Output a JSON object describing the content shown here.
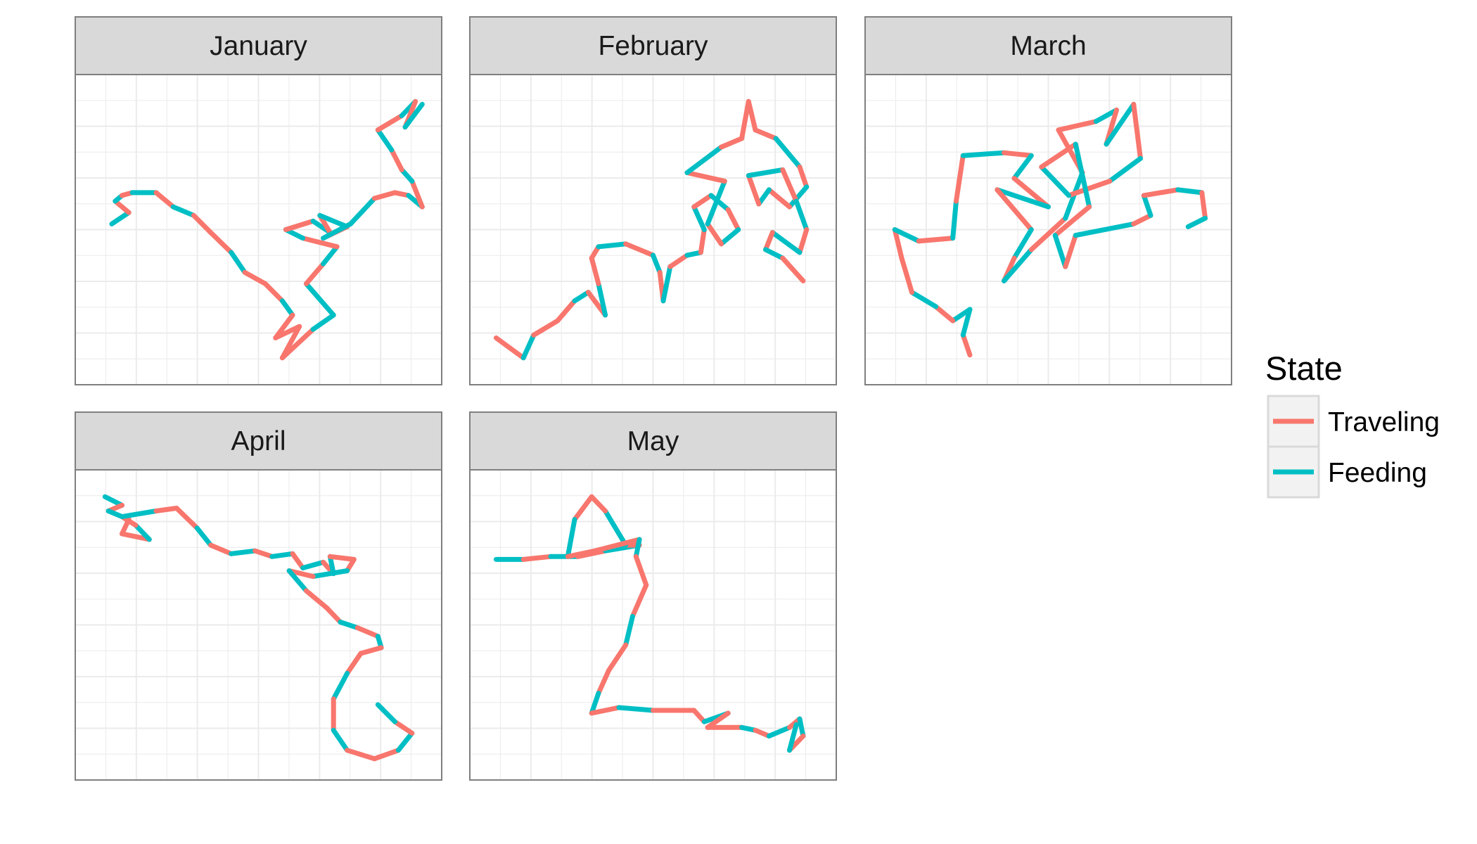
{
  "colors": {
    "traveling": "#f8766d",
    "feeding": "#00bfc4",
    "strip_fill": "#d9d9d9",
    "panel_border": "#7f7f7f",
    "grid": "#ebebeb"
  },
  "legend": {
    "title": "State",
    "items": [
      {
        "state": "traveling",
        "label": "Traveling"
      },
      {
        "state": "feeding",
        "label": "Feeding"
      }
    ]
  },
  "chart_data": {
    "type": "line",
    "facets": [
      "January",
      "February",
      "March",
      "April",
      "May"
    ],
    "axes": "hidden",
    "grid": true,
    "legend_position": "right",
    "series_by_facet": {
      "January": [
        {
          "x": 0.07,
          "y": 0.48,
          "s": "F"
        },
        {
          "x": 0.12,
          "y": 0.44,
          "s": "T"
        },
        {
          "x": 0.08,
          "y": 0.4,
          "s": "F"
        },
        {
          "x": 0.1,
          "y": 0.38,
          "s": "T"
        },
        {
          "x": 0.13,
          "y": 0.37,
          "s": "F"
        },
        {
          "x": 0.2,
          "y": 0.37,
          "s": "T"
        },
        {
          "x": 0.25,
          "y": 0.42,
          "s": "F"
        },
        {
          "x": 0.31,
          "y": 0.45,
          "s": "T"
        },
        {
          "x": 0.36,
          "y": 0.51,
          "s": "T"
        },
        {
          "x": 0.42,
          "y": 0.58,
          "s": "F"
        },
        {
          "x": 0.46,
          "y": 0.65,
          "s": "T"
        },
        {
          "x": 0.52,
          "y": 0.69,
          "s": "T"
        },
        {
          "x": 0.57,
          "y": 0.75,
          "s": "F"
        },
        {
          "x": 0.6,
          "y": 0.8,
          "s": "T"
        },
        {
          "x": 0.55,
          "y": 0.88,
          "s": "T"
        },
        {
          "x": 0.62,
          "y": 0.84,
          "s": "T"
        },
        {
          "x": 0.57,
          "y": 0.95,
          "s": "T"
        },
        {
          "x": 0.66,
          "y": 0.85,
          "s": "F"
        },
        {
          "x": 0.72,
          "y": 0.8,
          "s": "F"
        },
        {
          "x": 0.64,
          "y": 0.69,
          "s": "T"
        },
        {
          "x": 0.69,
          "y": 0.62,
          "s": "F"
        },
        {
          "x": 0.73,
          "y": 0.56,
          "s": "T"
        },
        {
          "x": 0.63,
          "y": 0.53,
          "s": "F"
        },
        {
          "x": 0.58,
          "y": 0.5,
          "s": "T"
        },
        {
          "x": 0.66,
          "y": 0.47,
          "s": "F"
        },
        {
          "x": 0.71,
          "y": 0.51,
          "s": "T"
        },
        {
          "x": 0.68,
          "y": 0.45,
          "s": "F"
        },
        {
          "x": 0.76,
          "y": 0.49,
          "s": "T"
        },
        {
          "x": 0.69,
          "y": 0.53,
          "s": "F"
        },
        {
          "x": 0.77,
          "y": 0.48,
          "s": "F"
        },
        {
          "x": 0.84,
          "y": 0.39,
          "s": "T"
        },
        {
          "x": 0.9,
          "y": 0.37,
          "s": "T"
        },
        {
          "x": 0.94,
          "y": 0.38,
          "s": "F"
        },
        {
          "x": 0.98,
          "y": 0.42,
          "s": "T"
        },
        {
          "x": 0.95,
          "y": 0.33,
          "s": "F"
        },
        {
          "x": 0.92,
          "y": 0.29,
          "s": "T"
        },
        {
          "x": 0.89,
          "y": 0.22,
          "s": "F"
        },
        {
          "x": 0.85,
          "y": 0.15,
          "s": "T"
        },
        {
          "x": 0.92,
          "y": 0.1,
          "s": "F"
        },
        {
          "x": 0.96,
          "y": 0.05,
          "s": "T"
        },
        {
          "x": 0.93,
          "y": 0.14,
          "s": "F"
        },
        {
          "x": 0.98,
          "y": 0.06,
          "s": "T"
        }
      ],
      "February": [
        {
          "x": 0.04,
          "y": 0.88,
          "s": "T"
        },
        {
          "x": 0.12,
          "y": 0.95,
          "s": "F"
        },
        {
          "x": 0.15,
          "y": 0.87,
          "s": "T"
        },
        {
          "x": 0.22,
          "y": 0.82,
          "s": "T"
        },
        {
          "x": 0.27,
          "y": 0.75,
          "s": "F"
        },
        {
          "x": 0.31,
          "y": 0.72,
          "s": "T"
        },
        {
          "x": 0.36,
          "y": 0.8,
          "s": "F"
        },
        {
          "x": 0.34,
          "y": 0.69,
          "s": "T"
        },
        {
          "x": 0.32,
          "y": 0.6,
          "s": "T"
        },
        {
          "x": 0.34,
          "y": 0.56,
          "s": "F"
        },
        {
          "x": 0.42,
          "y": 0.55,
          "s": "T"
        },
        {
          "x": 0.5,
          "y": 0.59,
          "s": "F"
        },
        {
          "x": 0.52,
          "y": 0.65,
          "s": "T"
        },
        {
          "x": 0.53,
          "y": 0.75,
          "s": "F"
        },
        {
          "x": 0.55,
          "y": 0.63,
          "s": "T"
        },
        {
          "x": 0.6,
          "y": 0.59,
          "s": "F"
        },
        {
          "x": 0.64,
          "y": 0.58,
          "s": "T"
        },
        {
          "x": 0.65,
          "y": 0.5,
          "s": "F"
        },
        {
          "x": 0.62,
          "y": 0.42,
          "s": "T"
        },
        {
          "x": 0.67,
          "y": 0.38,
          "s": "F"
        },
        {
          "x": 0.72,
          "y": 0.43,
          "s": "T"
        },
        {
          "x": 0.75,
          "y": 0.5,
          "s": "F"
        },
        {
          "x": 0.7,
          "y": 0.55,
          "s": "T"
        },
        {
          "x": 0.66,
          "y": 0.48,
          "s": "F"
        },
        {
          "x": 0.71,
          "y": 0.33,
          "s": "T"
        },
        {
          "x": 0.6,
          "y": 0.3,
          "s": "F"
        },
        {
          "x": 0.7,
          "y": 0.21,
          "s": "T"
        },
        {
          "x": 0.76,
          "y": 0.18,
          "s": "T"
        },
        {
          "x": 0.78,
          "y": 0.05,
          "s": "T"
        },
        {
          "x": 0.8,
          "y": 0.15,
          "s": "T"
        },
        {
          "x": 0.86,
          "y": 0.18,
          "s": "F"
        },
        {
          "x": 0.93,
          "y": 0.28,
          "s": "T"
        },
        {
          "x": 0.95,
          "y": 0.35,
          "s": "F"
        },
        {
          "x": 0.9,
          "y": 0.42,
          "s": "T"
        },
        {
          "x": 0.84,
          "y": 0.36,
          "s": "F"
        },
        {
          "x": 0.81,
          "y": 0.41,
          "s": "T"
        },
        {
          "x": 0.78,
          "y": 0.31,
          "s": "F"
        },
        {
          "x": 0.88,
          "y": 0.29,
          "s": "T"
        },
        {
          "x": 0.92,
          "y": 0.4,
          "s": "F"
        },
        {
          "x": 0.95,
          "y": 0.5,
          "s": "T"
        },
        {
          "x": 0.93,
          "y": 0.58,
          "s": "F"
        },
        {
          "x": 0.85,
          "y": 0.51,
          "s": "T"
        },
        {
          "x": 0.83,
          "y": 0.57,
          "s": "F"
        },
        {
          "x": 0.88,
          "y": 0.6,
          "s": "T"
        },
        {
          "x": 0.94,
          "y": 0.68,
          "s": "T"
        }
      ],
      "March": [
        {
          "x": 0.27,
          "y": 0.94,
          "s": "T"
        },
        {
          "x": 0.25,
          "y": 0.87,
          "s": "F"
        },
        {
          "x": 0.27,
          "y": 0.78,
          "s": "F"
        },
        {
          "x": 0.22,
          "y": 0.82,
          "s": "T"
        },
        {
          "x": 0.17,
          "y": 0.77,
          "s": "F"
        },
        {
          "x": 0.1,
          "y": 0.72,
          "s": "T"
        },
        {
          "x": 0.07,
          "y": 0.6,
          "s": "T"
        },
        {
          "x": 0.05,
          "y": 0.5,
          "s": "F"
        },
        {
          "x": 0.12,
          "y": 0.54,
          "s": "T"
        },
        {
          "x": 0.22,
          "y": 0.53,
          "s": "F"
        },
        {
          "x": 0.23,
          "y": 0.4,
          "s": "T"
        },
        {
          "x": 0.25,
          "y": 0.24,
          "s": "F"
        },
        {
          "x": 0.37,
          "y": 0.23,
          "s": "T"
        },
        {
          "x": 0.45,
          "y": 0.24,
          "s": "F"
        },
        {
          "x": 0.4,
          "y": 0.32,
          "s": "T"
        },
        {
          "x": 0.5,
          "y": 0.42,
          "s": "F"
        },
        {
          "x": 0.35,
          "y": 0.36,
          "s": "T"
        },
        {
          "x": 0.45,
          "y": 0.5,
          "s": "F"
        },
        {
          "x": 0.4,
          "y": 0.6,
          "s": "T"
        },
        {
          "x": 0.37,
          "y": 0.68,
          "s": "F"
        },
        {
          "x": 0.45,
          "y": 0.57,
          "s": "T"
        },
        {
          "x": 0.55,
          "y": 0.46,
          "s": "F"
        },
        {
          "x": 0.6,
          "y": 0.3,
          "s": "T"
        },
        {
          "x": 0.53,
          "y": 0.15,
          "s": "T"
        },
        {
          "x": 0.64,
          "y": 0.12,
          "s": "F"
        },
        {
          "x": 0.7,
          "y": 0.08,
          "s": "T"
        },
        {
          "x": 0.67,
          "y": 0.2,
          "s": "F"
        },
        {
          "x": 0.75,
          "y": 0.06,
          "s": "T"
        },
        {
          "x": 0.77,
          "y": 0.25,
          "s": "F"
        },
        {
          "x": 0.68,
          "y": 0.33,
          "s": "T"
        },
        {
          "x": 0.56,
          "y": 0.38,
          "s": "F"
        },
        {
          "x": 0.48,
          "y": 0.28,
          "s": "T"
        },
        {
          "x": 0.58,
          "y": 0.2,
          "s": "F"
        },
        {
          "x": 0.62,
          "y": 0.42,
          "s": "T"
        },
        {
          "x": 0.52,
          "y": 0.52,
          "s": "F"
        },
        {
          "x": 0.55,
          "y": 0.63,
          "s": "T"
        },
        {
          "x": 0.58,
          "y": 0.52,
          "s": "F"
        },
        {
          "x": 0.75,
          "y": 0.48,
          "s": "T"
        },
        {
          "x": 0.8,
          "y": 0.45,
          "s": "F"
        },
        {
          "x": 0.78,
          "y": 0.38,
          "s": "T"
        },
        {
          "x": 0.88,
          "y": 0.36,
          "s": "F"
        },
        {
          "x": 0.95,
          "y": 0.37,
          "s": "T"
        },
        {
          "x": 0.96,
          "y": 0.46,
          "s": "F"
        },
        {
          "x": 0.91,
          "y": 0.49,
          "s": "T"
        }
      ],
      "April": [
        {
          "x": 0.05,
          "y": 0.05,
          "s": "F"
        },
        {
          "x": 0.1,
          "y": 0.08,
          "s": "T"
        },
        {
          "x": 0.06,
          "y": 0.1,
          "s": "F"
        },
        {
          "x": 0.12,
          "y": 0.13,
          "s": "T"
        },
        {
          "x": 0.1,
          "y": 0.18,
          "s": "T"
        },
        {
          "x": 0.18,
          "y": 0.2,
          "s": "F"
        },
        {
          "x": 0.14,
          "y": 0.15,
          "s": "T"
        },
        {
          "x": 0.1,
          "y": 0.12,
          "s": "F"
        },
        {
          "x": 0.2,
          "y": 0.1,
          "s": "T"
        },
        {
          "x": 0.26,
          "y": 0.09,
          "s": "T"
        },
        {
          "x": 0.32,
          "y": 0.16,
          "s": "F"
        },
        {
          "x": 0.36,
          "y": 0.22,
          "s": "T"
        },
        {
          "x": 0.42,
          "y": 0.25,
          "s": "F"
        },
        {
          "x": 0.49,
          "y": 0.24,
          "s": "T"
        },
        {
          "x": 0.54,
          "y": 0.26,
          "s": "F"
        },
        {
          "x": 0.6,
          "y": 0.25,
          "s": "T"
        },
        {
          "x": 0.63,
          "y": 0.3,
          "s": "F"
        },
        {
          "x": 0.69,
          "y": 0.28,
          "s": "T"
        },
        {
          "x": 0.72,
          "y": 0.32,
          "s": "F"
        },
        {
          "x": 0.71,
          "y": 0.26,
          "s": "T"
        },
        {
          "x": 0.78,
          "y": 0.27,
          "s": "T"
        },
        {
          "x": 0.76,
          "y": 0.31,
          "s": "F"
        },
        {
          "x": 0.66,
          "y": 0.33,
          "s": "T"
        },
        {
          "x": 0.59,
          "y": 0.31,
          "s": "F"
        },
        {
          "x": 0.64,
          "y": 0.38,
          "s": "T"
        },
        {
          "x": 0.7,
          "y": 0.44,
          "s": "T"
        },
        {
          "x": 0.74,
          "y": 0.49,
          "s": "F"
        },
        {
          "x": 0.79,
          "y": 0.51,
          "s": "T"
        },
        {
          "x": 0.85,
          "y": 0.54,
          "s": "F"
        },
        {
          "x": 0.86,
          "y": 0.58,
          "s": "T"
        },
        {
          "x": 0.8,
          "y": 0.6,
          "s": "T"
        },
        {
          "x": 0.76,
          "y": 0.67,
          "s": "F"
        },
        {
          "x": 0.72,
          "y": 0.76,
          "s": "T"
        },
        {
          "x": 0.72,
          "y": 0.87,
          "s": "F"
        },
        {
          "x": 0.76,
          "y": 0.94,
          "s": "T"
        },
        {
          "x": 0.84,
          "y": 0.97,
          "s": "T"
        },
        {
          "x": 0.91,
          "y": 0.94,
          "s": "F"
        },
        {
          "x": 0.95,
          "y": 0.88,
          "s": "T"
        },
        {
          "x": 0.9,
          "y": 0.84,
          "s": "F"
        },
        {
          "x": 0.85,
          "y": 0.78,
          "s": "T"
        }
      ],
      "May": [
        {
          "x": 0.04,
          "y": 0.27,
          "s": "F"
        },
        {
          "x": 0.12,
          "y": 0.27,
          "s": "T"
        },
        {
          "x": 0.2,
          "y": 0.26,
          "s": "F"
        },
        {
          "x": 0.28,
          "y": 0.26,
          "s": "T"
        },
        {
          "x": 0.36,
          "y": 0.24,
          "s": "F"
        },
        {
          "x": 0.46,
          "y": 0.22,
          "s": "T"
        },
        {
          "x": 0.42,
          "y": 0.22,
          "s": "F"
        },
        {
          "x": 0.36,
          "y": 0.1,
          "s": "T"
        },
        {
          "x": 0.32,
          "y": 0.05,
          "s": "T"
        },
        {
          "x": 0.27,
          "y": 0.13,
          "s": "F"
        },
        {
          "x": 0.25,
          "y": 0.26,
          "s": "T"
        },
        {
          "x": 0.33,
          "y": 0.24,
          "s": "T"
        },
        {
          "x": 0.46,
          "y": 0.2,
          "s": "F"
        },
        {
          "x": 0.45,
          "y": 0.26,
          "s": "T"
        },
        {
          "x": 0.48,
          "y": 0.36,
          "s": "T"
        },
        {
          "x": 0.44,
          "y": 0.47,
          "s": "F"
        },
        {
          "x": 0.42,
          "y": 0.57,
          "s": "T"
        },
        {
          "x": 0.37,
          "y": 0.66,
          "s": "T"
        },
        {
          "x": 0.34,
          "y": 0.74,
          "s": "F"
        },
        {
          "x": 0.32,
          "y": 0.81,
          "s": "T"
        },
        {
          "x": 0.4,
          "y": 0.79,
          "s": "F"
        },
        {
          "x": 0.5,
          "y": 0.8,
          "s": "T"
        },
        {
          "x": 0.62,
          "y": 0.8,
          "s": "T"
        },
        {
          "x": 0.65,
          "y": 0.84,
          "s": "F"
        },
        {
          "x": 0.72,
          "y": 0.81,
          "s": "T"
        },
        {
          "x": 0.66,
          "y": 0.86,
          "s": "T"
        },
        {
          "x": 0.76,
          "y": 0.86,
          "s": "F"
        },
        {
          "x": 0.8,
          "y": 0.87,
          "s": "T"
        },
        {
          "x": 0.84,
          "y": 0.89,
          "s": "F"
        },
        {
          "x": 0.9,
          "y": 0.86,
          "s": "T"
        },
        {
          "x": 0.93,
          "y": 0.83,
          "s": "F"
        },
        {
          "x": 0.94,
          "y": 0.89,
          "s": "T"
        },
        {
          "x": 0.9,
          "y": 0.94,
          "s": "F"
        },
        {
          "x": 0.92,
          "y": 0.85,
          "s": "T"
        }
      ]
    }
  }
}
